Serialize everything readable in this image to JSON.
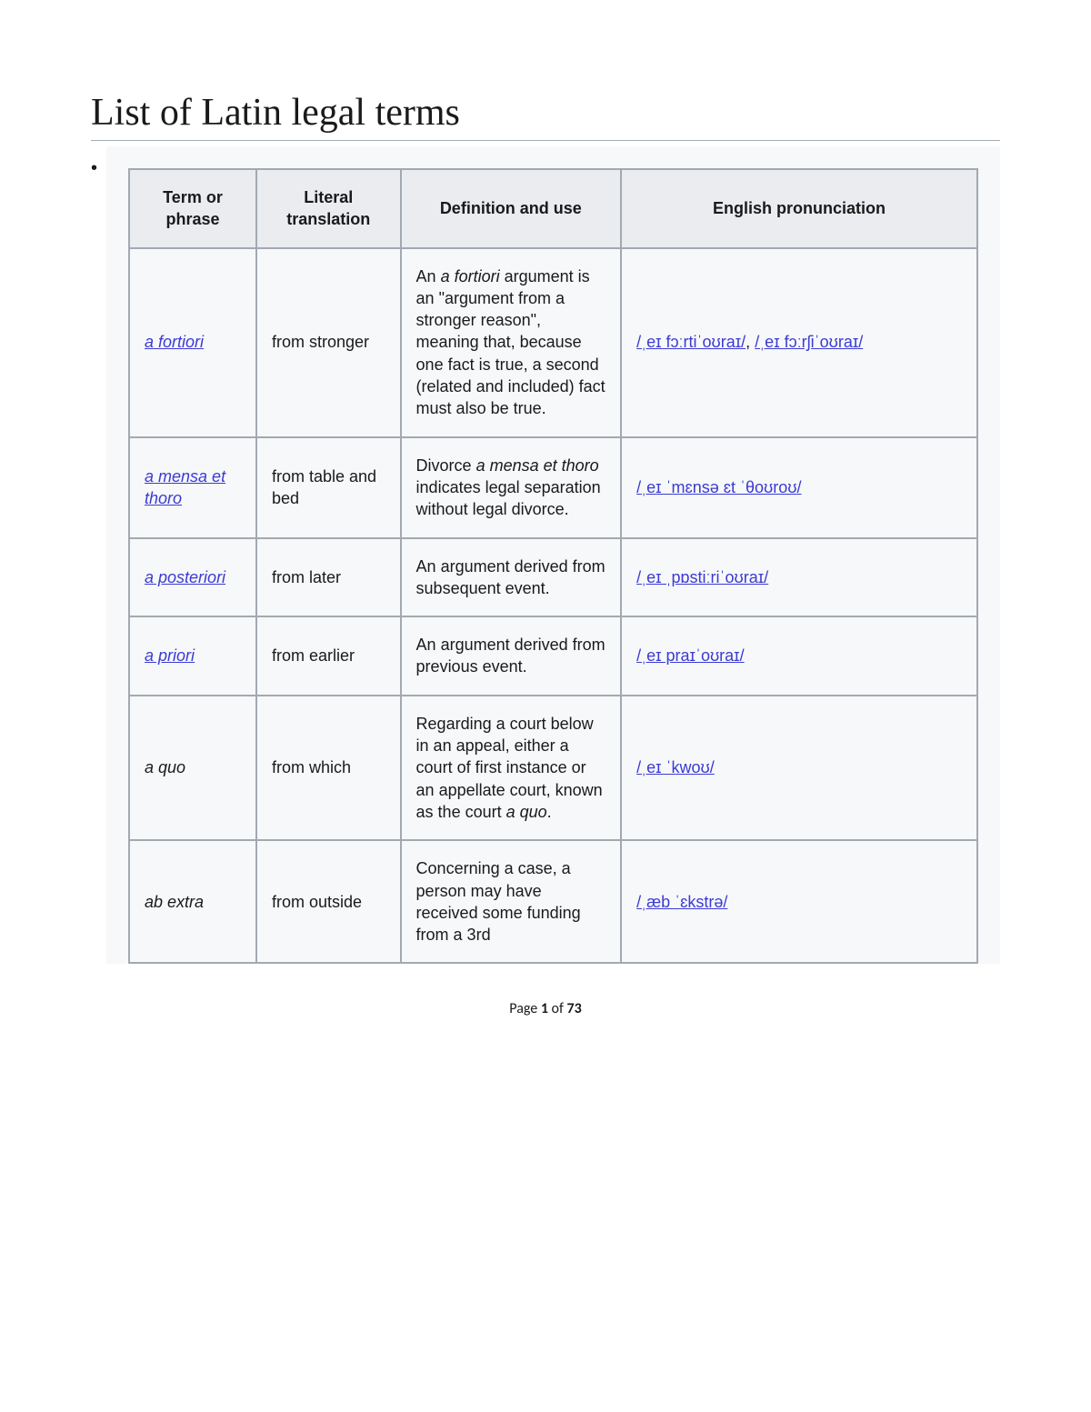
{
  "title": "List of Latin legal terms",
  "columns": [
    "Term or phrase",
    "Literal translation",
    "Definition and use",
    "English pronunciation"
  ],
  "rows": [
    {
      "term_html": "<span class='link italic'>a fortiori</span>",
      "translation": "from stronger",
      "definition_html": "An <span class='italic'>a fortiori</span> argument is an \"argument from a stronger reason\", meaning that, because one fact is true, a second (related and included) fact must also be true.",
      "pronunciation_html": "<span class='link'>/ˌeɪ fɔːrtiˈoʊraɪ/</span>, <span class='link'>/ˌeɪ fɔːrʃiˈoʊraɪ/</span>"
    },
    {
      "term_html": "<span class='link italic'>a mensa et thoro</span>",
      "translation": "from table and bed",
      "definition_html": "Divorce <span class='italic'>a mensa et thoro</span> indicates legal separation without legal divorce.",
      "pronunciation_html": "<span class='link'>/ˌeɪ ˈmɛnsə ɛt ˈθoʊroʊ/</span>"
    },
    {
      "term_html": "<span class='link italic'>a posteriori</span>",
      "translation": "from later",
      "definition_html": "An argument derived from subsequent event.",
      "pronunciation_html": "<span class='link'>/ˌeɪ ˌpɒstiːriˈoʊraɪ/</span>"
    },
    {
      "term_html": "<span class='link italic'>a priori</span>",
      "translation": "from earlier",
      "definition_html": "An argument derived from previous event.",
      "pronunciation_html": "<span class='link'>/ˌeɪ praɪˈoʊraɪ/</span>"
    },
    {
      "term_html": "<span class='italic'>a quo</span>",
      "translation": "from which",
      "definition_html": "Regarding a court below in an appeal, either a court of first instance or an appellate court, known as the court <span class='italic'>a quo</span>.",
      "pronunciation_html": "<span class='link'>/ˌeɪ ˈkwoʊ/</span>"
    },
    {
      "term_html": "<span class='italic'>ab extra</span>",
      "translation": "from outside",
      "definition_html": "Concerning a case, a person may have received some funding from a 3rd",
      "pronunciation_html": "<span class='link'>/ˌæb ˈɛkstrə/</span>",
      "def_valign": "top"
    }
  ],
  "footer": {
    "prefix": "Page ",
    "current": "1",
    "of": " of ",
    "total": "73"
  },
  "style": {
    "header_bg": "#eaecf0",
    "body_bg": "#f7f8fa",
    "border_color": "#a2a9b1",
    "link_color": "#3b3bd4",
    "title_fontsize": 42,
    "cell_fontsize": 18
  }
}
